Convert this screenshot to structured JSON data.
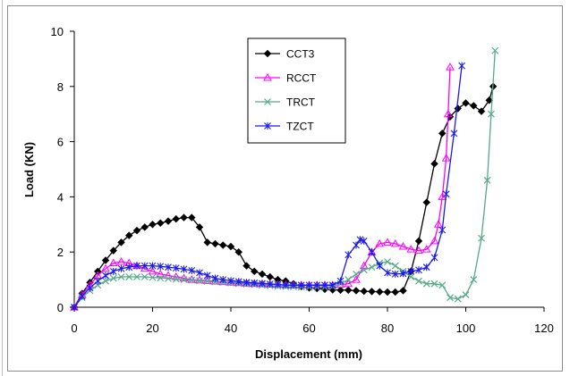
{
  "chart_data": {
    "type": "line",
    "xlabel": "Displacement (mm)",
    "ylabel": "Load (KN)",
    "xlim": [
      0,
      120
    ],
    "ylim": [
      0,
      10
    ],
    "xticks": [
      0,
      20,
      40,
      60,
      80,
      100,
      120
    ],
    "yticks": [
      0,
      2,
      4,
      6,
      8,
      10
    ],
    "grid": false,
    "legend_position": "top-center",
    "series": [
      {
        "name": "CCT3",
        "color": "#000000",
        "marker": "diamond",
        "points": [
          [
            0,
            0
          ],
          [
            2,
            0.5
          ],
          [
            4,
            0.9
          ],
          [
            6,
            1.3
          ],
          [
            8,
            1.7
          ],
          [
            10,
            2.05
          ],
          [
            12,
            2.35
          ],
          [
            14,
            2.6
          ],
          [
            16,
            2.78
          ],
          [
            18,
            2.9
          ],
          [
            20,
            3.0
          ],
          [
            22,
            3.05
          ],
          [
            24,
            3.12
          ],
          [
            26,
            3.2
          ],
          [
            28,
            3.25
          ],
          [
            30,
            3.25
          ],
          [
            32,
            2.9
          ],
          [
            34,
            2.35
          ],
          [
            36,
            2.3
          ],
          [
            38,
            2.25
          ],
          [
            40,
            2.2
          ],
          [
            42,
            2.0
          ],
          [
            44,
            1.5
          ],
          [
            46,
            1.3
          ],
          [
            48,
            1.2
          ],
          [
            50,
            1.1
          ],
          [
            52,
            1.0
          ],
          [
            54,
            0.95
          ],
          [
            56,
            0.85
          ],
          [
            58,
            0.75
          ],
          [
            60,
            0.7
          ],
          [
            62,
            0.68
          ],
          [
            64,
            0.65
          ],
          [
            66,
            0.63
          ],
          [
            68,
            0.62
          ],
          [
            70,
            0.62
          ],
          [
            72,
            0.6
          ],
          [
            74,
            0.58
          ],
          [
            76,
            0.57
          ],
          [
            78,
            0.56
          ],
          [
            80,
            0.55
          ],
          [
            82,
            0.55
          ],
          [
            84,
            0.6
          ],
          [
            86,
            1.3
          ],
          [
            88,
            2.4
          ],
          [
            90,
            3.8
          ],
          [
            92,
            5.2
          ],
          [
            94,
            6.3
          ],
          [
            96,
            6.9
          ],
          [
            98,
            7.2
          ],
          [
            100,
            7.4
          ],
          [
            102,
            7.3
          ],
          [
            104,
            7.1
          ],
          [
            106,
            7.5
          ],
          [
            107,
            8.0
          ]
        ]
      },
      {
        "name": "RCCT",
        "color": "#ff00ff",
        "marker": "triangle",
        "points": [
          [
            0,
            0
          ],
          [
            2,
            0.45
          ],
          [
            4,
            0.8
          ],
          [
            6,
            1.15
          ],
          [
            8,
            1.4
          ],
          [
            10,
            1.6
          ],
          [
            12,
            1.65
          ],
          [
            14,
            1.6
          ],
          [
            16,
            1.5
          ],
          [
            18,
            1.4
          ],
          [
            20,
            1.3
          ],
          [
            22,
            1.2
          ],
          [
            24,
            1.15
          ],
          [
            26,
            1.1
          ],
          [
            28,
            1.05
          ],
          [
            30,
            1.0
          ],
          [
            32,
            0.98
          ],
          [
            34,
            0.96
          ],
          [
            36,
            0.94
          ],
          [
            38,
            0.92
          ],
          [
            40,
            0.9
          ],
          [
            42,
            0.88
          ],
          [
            44,
            0.86
          ],
          [
            46,
            0.85
          ],
          [
            48,
            0.84
          ],
          [
            50,
            0.83
          ],
          [
            52,
            0.82
          ],
          [
            54,
            0.81
          ],
          [
            56,
            0.8
          ],
          [
            58,
            0.8
          ],
          [
            60,
            0.8
          ],
          [
            62,
            0.8
          ],
          [
            64,
            0.8
          ],
          [
            66,
            0.8
          ],
          [
            68,
            0.82
          ],
          [
            70,
            0.85
          ],
          [
            72,
            1.0
          ],
          [
            74,
            1.5
          ],
          [
            76,
            2.0
          ],
          [
            78,
            2.3
          ],
          [
            80,
            2.35
          ],
          [
            82,
            2.3
          ],
          [
            84,
            2.2
          ],
          [
            86,
            2.1
          ],
          [
            88,
            2.05
          ],
          [
            90,
            2.1
          ],
          [
            92,
            2.4
          ],
          [
            93,
            3.0
          ],
          [
            94,
            4.0
          ],
          [
            95,
            5.4
          ],
          [
            95.5,
            7.0
          ],
          [
            96,
            8.7
          ]
        ]
      },
      {
        "name": "TRCT",
        "color": "#55aa88",
        "marker": "x",
        "points": [
          [
            0,
            0
          ],
          [
            2,
            0.35
          ],
          [
            4,
            0.6
          ],
          [
            6,
            0.8
          ],
          [
            8,
            0.95
          ],
          [
            10,
            1.05
          ],
          [
            12,
            1.1
          ],
          [
            14,
            1.1
          ],
          [
            16,
            1.1
          ],
          [
            18,
            1.1
          ],
          [
            20,
            1.08
          ],
          [
            22,
            1.06
          ],
          [
            24,
            1.04
          ],
          [
            26,
            1.02
          ],
          [
            28,
            1.0
          ],
          [
            30,
            0.98
          ],
          [
            32,
            0.96
          ],
          [
            34,
            0.94
          ],
          [
            36,
            0.92
          ],
          [
            38,
            0.9
          ],
          [
            40,
            0.88
          ],
          [
            42,
            0.86
          ],
          [
            44,
            0.84
          ],
          [
            46,
            0.82
          ],
          [
            48,
            0.8
          ],
          [
            50,
            0.78
          ],
          [
            52,
            0.76
          ],
          [
            54,
            0.75
          ],
          [
            56,
            0.74
          ],
          [
            58,
            0.73
          ],
          [
            60,
            0.72
          ],
          [
            62,
            0.72
          ],
          [
            64,
            0.72
          ],
          [
            66,
            0.75
          ],
          [
            68,
            0.85
          ],
          [
            70,
            1.0
          ],
          [
            72,
            1.2
          ],
          [
            74,
            1.35
          ],
          [
            76,
            1.45
          ],
          [
            78,
            1.6
          ],
          [
            80,
            1.65
          ],
          [
            82,
            1.5
          ],
          [
            84,
            1.3
          ],
          [
            86,
            1.1
          ],
          [
            88,
            0.95
          ],
          [
            90,
            0.85
          ],
          [
            92,
            0.85
          ],
          [
            94,
            0.8
          ],
          [
            96,
            0.35
          ],
          [
            98,
            0.3
          ],
          [
            100,
            0.45
          ],
          [
            102,
            1.0
          ],
          [
            104,
            2.5
          ],
          [
            105.5,
            4.6
          ],
          [
            106.5,
            7.0
          ],
          [
            107.5,
            9.3
          ]
        ]
      },
      {
        "name": "TZCT",
        "color": "#1a1aee",
        "marker": "star",
        "points": [
          [
            0,
            0
          ],
          [
            2,
            0.4
          ],
          [
            4,
            0.7
          ],
          [
            6,
            0.95
          ],
          [
            8,
            1.15
          ],
          [
            10,
            1.3
          ],
          [
            12,
            1.4
          ],
          [
            14,
            1.45
          ],
          [
            16,
            1.5
          ],
          [
            18,
            1.5
          ],
          [
            20,
            1.5
          ],
          [
            22,
            1.48
          ],
          [
            24,
            1.45
          ],
          [
            26,
            1.42
          ],
          [
            28,
            1.38
          ],
          [
            30,
            1.33
          ],
          [
            32,
            1.25
          ],
          [
            34,
            1.15
          ],
          [
            36,
            1.05
          ],
          [
            38,
            1.0
          ],
          [
            40,
            0.96
          ],
          [
            42,
            0.93
          ],
          [
            44,
            0.9
          ],
          [
            46,
            0.88
          ],
          [
            48,
            0.86
          ],
          [
            50,
            0.84
          ],
          [
            52,
            0.82
          ],
          [
            54,
            0.8
          ],
          [
            56,
            0.8
          ],
          [
            58,
            0.8
          ],
          [
            60,
            0.8
          ],
          [
            62,
            0.8
          ],
          [
            64,
            0.8
          ],
          [
            66,
            0.8
          ],
          [
            68,
            0.95
          ],
          [
            70,
            1.9
          ],
          [
            72,
            2.25
          ],
          [
            73,
            2.45
          ],
          [
            74,
            2.4
          ],
          [
            76,
            2.0
          ],
          [
            78,
            1.5
          ],
          [
            80,
            1.25
          ],
          [
            82,
            1.2
          ],
          [
            84,
            1.22
          ],
          [
            86,
            1.3
          ],
          [
            88,
            1.35
          ],
          [
            90,
            1.45
          ],
          [
            92,
            1.8
          ],
          [
            94,
            2.8
          ],
          [
            95,
            4.1
          ],
          [
            97,
            6.3
          ],
          [
            99,
            8.75
          ]
        ]
      }
    ]
  }
}
